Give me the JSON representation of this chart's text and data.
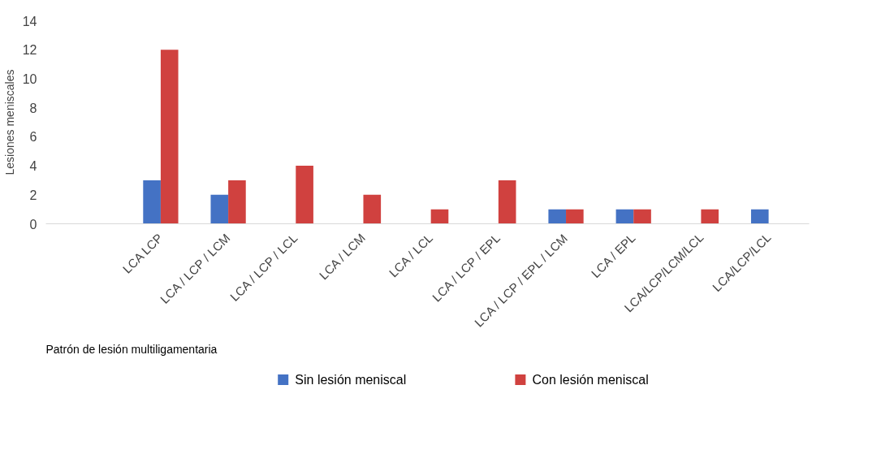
{
  "chart_data": {
    "type": "bar",
    "categories": [
      "LCA LCP",
      "LCA / LCP / LCM",
      "LCA / LCP / LCL",
      "LCA / LCM",
      "LCA / LCL",
      "LCA / LCP / EPL",
      "LCA / LCP / EPL / LCM",
      "LCA / EPL",
      "LCA/LCP/LCM/LCL",
      "LCA/LCP/LCL"
    ],
    "series": [
      {
        "name": "Sin lesión meniscal",
        "color": "#4472c4",
        "values": [
          3,
          2,
          0,
          0,
          0,
          0,
          1,
          1,
          0,
          1
        ]
      },
      {
        "name": "Con lesión meniscal",
        "color": "#d0413f",
        "values": [
          12,
          3,
          4,
          2,
          1,
          3,
          1,
          1,
          1,
          0
        ]
      }
    ],
    "ylabel": "Lesiones meniscales",
    "xlabel": "Patrón de lesión multiligamentaria",
    "ylim": [
      0,
      14
    ],
    "yticks": [
      0,
      2,
      4,
      6,
      8,
      10,
      12,
      14
    ],
    "grid": false,
    "legend": "bottom"
  }
}
